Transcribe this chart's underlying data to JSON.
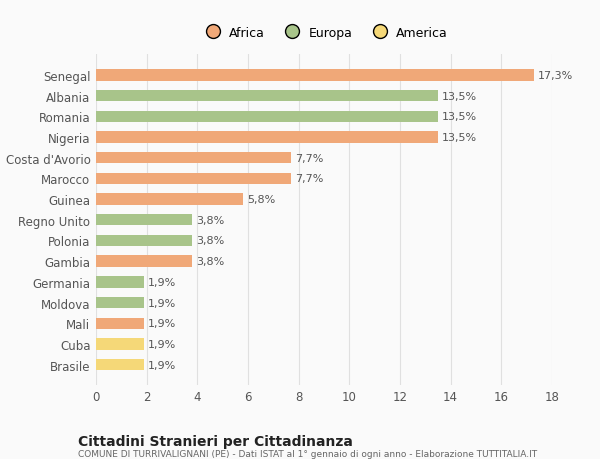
{
  "countries": [
    "Senegal",
    "Albania",
    "Romania",
    "Nigeria",
    "Costa d'Avorio",
    "Marocco",
    "Guinea",
    "Regno Unito",
    "Polonia",
    "Gambia",
    "Germania",
    "Moldova",
    "Mali",
    "Cuba",
    "Brasile"
  ],
  "values": [
    17.3,
    13.5,
    13.5,
    13.5,
    7.7,
    7.7,
    5.8,
    3.8,
    3.8,
    3.8,
    1.9,
    1.9,
    1.9,
    1.9,
    1.9
  ],
  "labels": [
    "17,3%",
    "13,5%",
    "13,5%",
    "13,5%",
    "7,7%",
    "7,7%",
    "5,8%",
    "3,8%",
    "3,8%",
    "3,8%",
    "1,9%",
    "1,9%",
    "1,9%",
    "1,9%",
    "1,9%"
  ],
  "continents": [
    "Africa",
    "Europa",
    "Europa",
    "Africa",
    "Africa",
    "Africa",
    "Africa",
    "Europa",
    "Europa",
    "Africa",
    "Europa",
    "Europa",
    "Africa",
    "America",
    "America"
  ],
  "colors": {
    "Africa": "#F0A878",
    "Europa": "#A8C48A",
    "America": "#F5D878"
  },
  "legend_labels": [
    "Africa",
    "Europa",
    "America"
  ],
  "title": "Cittadini Stranieri per Cittadinanza",
  "subtitle": "COMUNE DI TURRIVALIGNANI (PE) - Dati ISTAT al 1° gennaio di ogni anno - Elaborazione TUTTITALIA.IT",
  "xlim": [
    0,
    18
  ],
  "xticks": [
    0,
    2,
    4,
    6,
    8,
    10,
    12,
    14,
    16,
    18
  ],
  "background_color": "#FAFAFA",
  "grid_color": "#E0E0E0",
  "bar_height": 0.55,
  "label_fontsize": 8,
  "ytick_fontsize": 8.5,
  "xtick_fontsize": 8.5
}
